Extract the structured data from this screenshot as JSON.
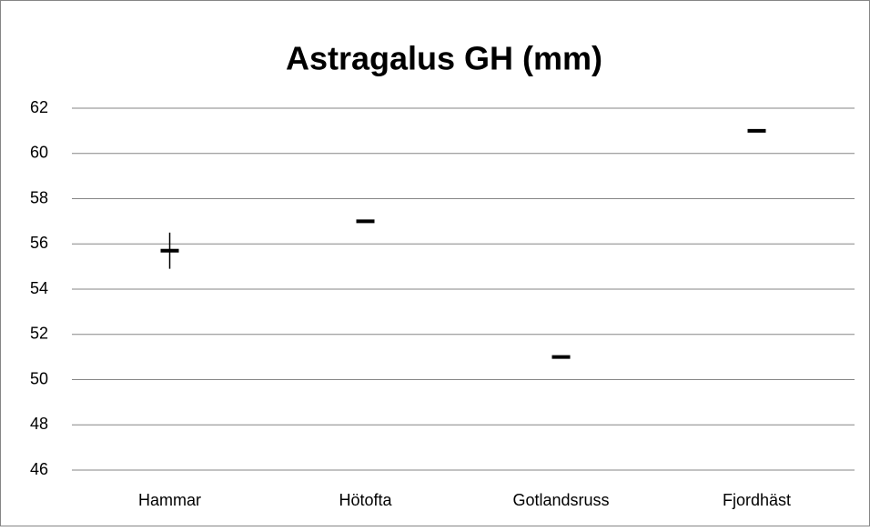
{
  "chart_data": {
    "type": "stock",
    "title": "Astragalus GH (mm)",
    "categories": [
      "Hammar",
      "Hötofta",
      "Gotlandsruss",
      "Fjordhäst"
    ],
    "values": [
      55.7,
      57,
      51,
      61
    ],
    "high": [
      56.5,
      null,
      null,
      null
    ],
    "low": [
      54.9,
      null,
      null,
      null
    ],
    "color": "#000000",
    "ylim": [
      46,
      62
    ],
    "yticks": [
      46,
      48,
      50,
      52,
      54,
      56,
      58,
      60,
      62
    ],
    "grid": true
  }
}
